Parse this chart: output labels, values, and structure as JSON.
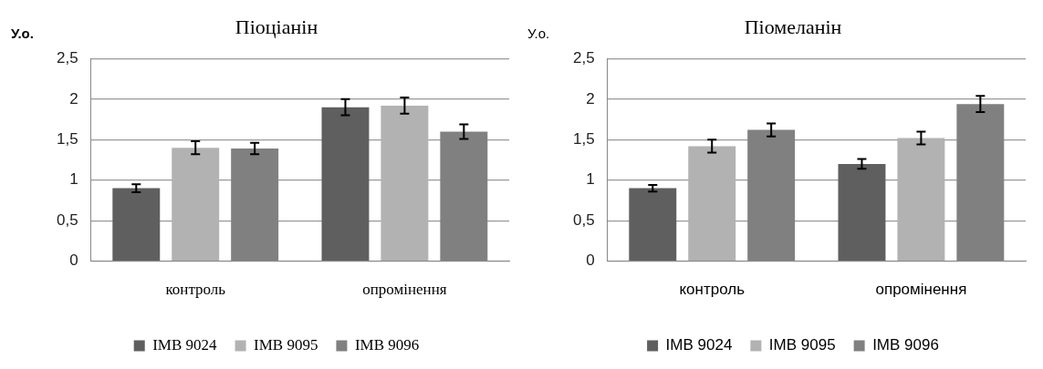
{
  "chart_data": [
    {
      "type": "bar",
      "title": "Піоціанін",
      "ylabel": "У.о.",
      "categories": [
        "контроль",
        "опромінення"
      ],
      "series": [
        {
          "name": "IMB 9024",
          "color": "#5f5f5f",
          "values": [
            0.9,
            1.9
          ],
          "errors": [
            0.05,
            0.1
          ]
        },
        {
          "name": "IMB 9095",
          "color": "#b2b2b2",
          "values": [
            1.4,
            1.92
          ],
          "errors": [
            0.08,
            0.1
          ]
        },
        {
          "name": "IMB 9096",
          "color": "#808080",
          "values": [
            1.39,
            1.6
          ],
          "errors": [
            0.07,
            0.09
          ]
        }
      ],
      "ylim": [
        0,
        2.5
      ],
      "yticks": [
        {
          "value": 0,
          "label": "0"
        },
        {
          "value": 0.5,
          "label": "0,5"
        },
        {
          "value": 1,
          "label": "1"
        },
        {
          "value": 1.5,
          "label": "1,5"
        },
        {
          "value": 2,
          "label": "2"
        },
        {
          "value": 2.5,
          "label": "2,5"
        }
      ],
      "grid": "y",
      "legend": "bottom"
    },
    {
      "type": "bar",
      "title": "Піомеланін",
      "ylabel": "У.о.",
      "categories": [
        "контроль",
        "опромінення"
      ],
      "series": [
        {
          "name": "IMB 9024",
          "color": "#5f5f5f",
          "values": [
            0.9,
            1.2
          ],
          "errors": [
            0.04,
            0.06
          ]
        },
        {
          "name": "IMB 9095",
          "color": "#b2b2b2",
          "values": [
            1.42,
            1.52
          ],
          "errors": [
            0.08,
            0.08
          ]
        },
        {
          "name": "IMB 9096",
          "color": "#808080",
          "values": [
            1.62,
            1.94
          ],
          "errors": [
            0.08,
            0.1
          ]
        }
      ],
      "ylim": [
        0,
        2.5
      ],
      "yticks": [
        {
          "value": 0,
          "label": "0"
        },
        {
          "value": 0.5,
          "label": "0,5"
        },
        {
          "value": 1,
          "label": "1"
        },
        {
          "value": 1.5,
          "label": "1,5"
        },
        {
          "value": 2,
          "label": "2"
        },
        {
          "value": 2.5,
          "label": "2,5"
        }
      ],
      "grid": "y",
      "legend": "bottom"
    }
  ]
}
